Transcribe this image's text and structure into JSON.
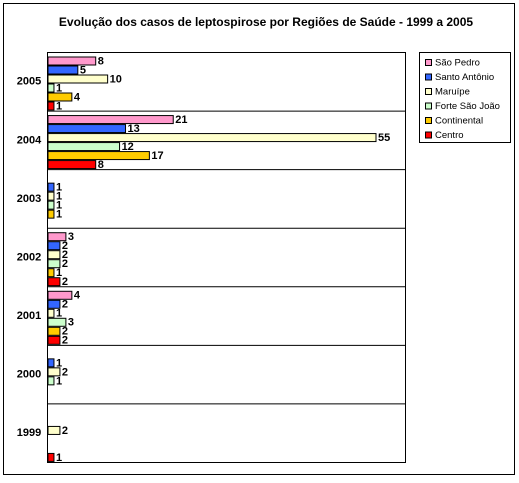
{
  "chart_data": {
    "type": "hbar",
    "title": "Evolução dos casos de leptospirose por Regiões de Saúde - 1999 a 2005",
    "categories": [
      "2005",
      "2004",
      "2003",
      "2002",
      "2001",
      "2000",
      "1999"
    ],
    "series": [
      {
        "name": "São Pedro",
        "color": "#ff99cc",
        "values": [
          8,
          21,
          null,
          3,
          4,
          null,
          null
        ]
      },
      {
        "name": "Santo Antônio",
        "color": "#3366ff",
        "values": [
          5,
          13,
          1,
          2,
          2,
          1,
          null
        ]
      },
      {
        "name": "Maruípe",
        "color": "#ffffcc",
        "values": [
          10,
          55,
          1,
          2,
          1,
          2,
          2
        ]
      },
      {
        "name": "Forte São João",
        "color": "#ccffcc",
        "values": [
          1,
          12,
          1,
          2,
          3,
          1,
          null
        ]
      },
      {
        "name": "Continental",
        "color": "#ffcc00",
        "values": [
          4,
          17,
          1,
          1,
          2,
          null,
          null
        ]
      },
      {
        "name": "Centro",
        "color": "#ff0000",
        "values": [
          1,
          8,
          null,
          2,
          2,
          null,
          1
        ]
      }
    ]
  }
}
